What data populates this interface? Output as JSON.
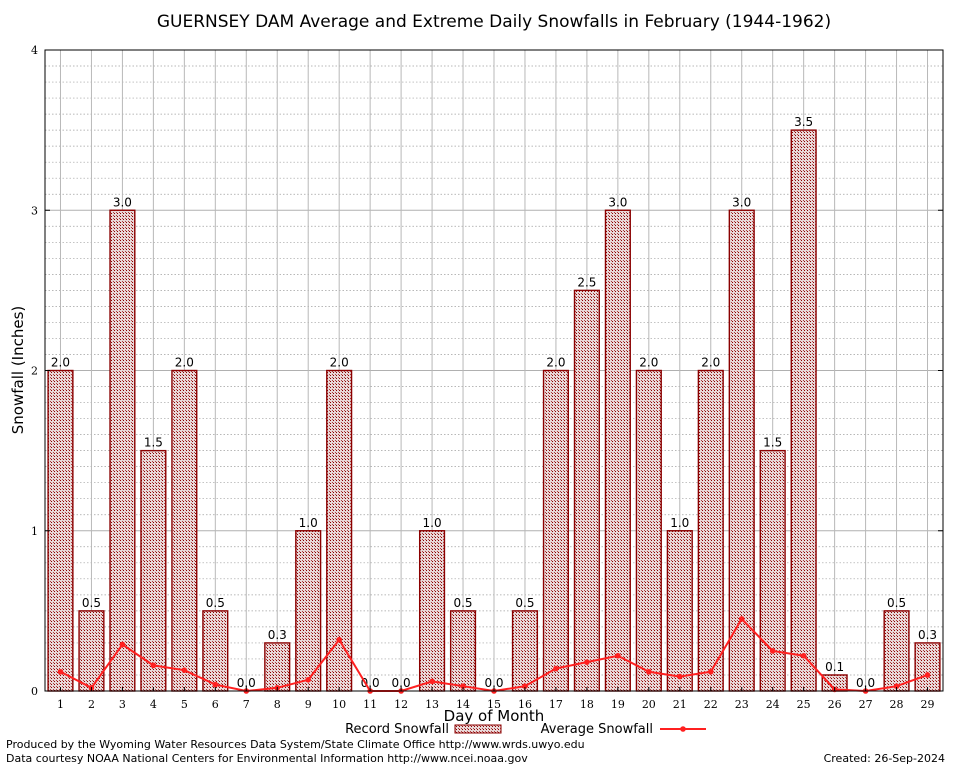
{
  "chart_data": {
    "type": "bar",
    "title": "GUERNSEY DAM Average and Extreme Daily Snowfalls in February (1944-1962)",
    "xlabel": "Day of Month",
    "ylabel": "Snowfall (Inches)",
    "ylim": [
      0,
      4
    ],
    "yticks": [
      "0",
      "1",
      "2",
      "3",
      "4"
    ],
    "categories": [
      "1",
      "2",
      "3",
      "4",
      "5",
      "6",
      "7",
      "8",
      "9",
      "10",
      "11",
      "12",
      "13",
      "14",
      "15",
      "16",
      "17",
      "18",
      "19",
      "20",
      "21",
      "22",
      "23",
      "24",
      "25",
      "26",
      "27",
      "28",
      "29"
    ],
    "series": [
      {
        "name": "Record Snowfall",
        "type": "bar",
        "values": [
          2.0,
          0.5,
          3.0,
          1.5,
          2.0,
          0.5,
          0.0,
          0.3,
          1.0,
          2.0,
          0.0,
          0.0,
          1.0,
          0.5,
          0.0,
          0.5,
          2.0,
          2.5,
          3.0,
          2.0,
          1.0,
          2.0,
          3.0,
          1.5,
          3.5,
          0.1,
          0.0,
          0.5,
          0.3
        ],
        "labels": [
          "2.0",
          "0.5",
          "3.0",
          "1.5",
          "2.0",
          "0.5",
          "0.0",
          "0.3",
          "1.0",
          "2.0",
          "0.0",
          "0.0",
          "1.0",
          "0.5",
          "0.0",
          "0.5",
          "2.0",
          "2.5",
          "3.0",
          "2.0",
          "1.0",
          "2.0",
          "3.0",
          "1.5",
          "3.5",
          "0.1",
          "0.0",
          "0.5",
          "0.3"
        ],
        "color": "#8b0000"
      },
      {
        "name": "Average Snowfall",
        "type": "line",
        "values": [
          0.12,
          0.02,
          0.29,
          0.16,
          0.13,
          0.04,
          0.0,
          0.02,
          0.07,
          0.32,
          0.0,
          0.0,
          0.06,
          0.03,
          0.0,
          0.03,
          0.14,
          0.18,
          0.22,
          0.12,
          0.09,
          0.12,
          0.45,
          0.25,
          0.22,
          0.01,
          0.0,
          0.03,
          0.1
        ],
        "color": "#ff2020"
      }
    ],
    "grid": true,
    "legend_position": "bottom-center"
  },
  "footer": {
    "line1": "Produced by the Wyoming Water Resources Data System/State Climate Office http://www.wrds.uwyo.edu",
    "line2": "Data courtesy NOAA National Centers for Environmental Information http://www.ncei.noaa.gov",
    "created": "Created: 26-Sep-2024"
  }
}
